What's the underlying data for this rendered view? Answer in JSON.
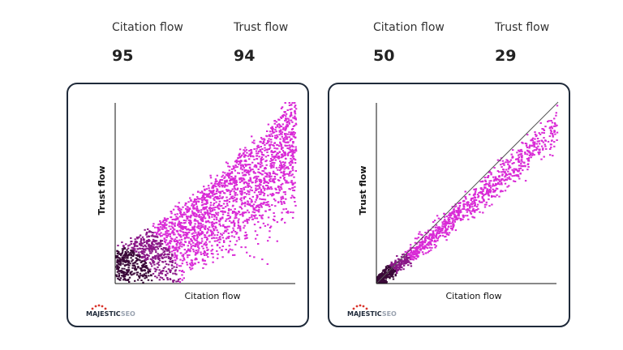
{
  "panels": [
    {
      "metrics": [
        {
          "label": "Citation flow",
          "value": 95
        },
        {
          "label": "Trust flow",
          "value": 94
        }
      ],
      "x_label": "Citation flow",
      "y_label": "Trust flow",
      "logo_main": "MAJESTIC",
      "logo_suffix": "SEO"
    },
    {
      "metrics": [
        {
          "label": "Citation flow",
          "value": 50
        },
        {
          "label": "Trust flow",
          "value": 29
        }
      ],
      "x_label": "Citation flow",
      "y_label": "Trust flow",
      "logo_main": "MAJESTIC",
      "logo_suffix": "SEO"
    }
  ]
}
